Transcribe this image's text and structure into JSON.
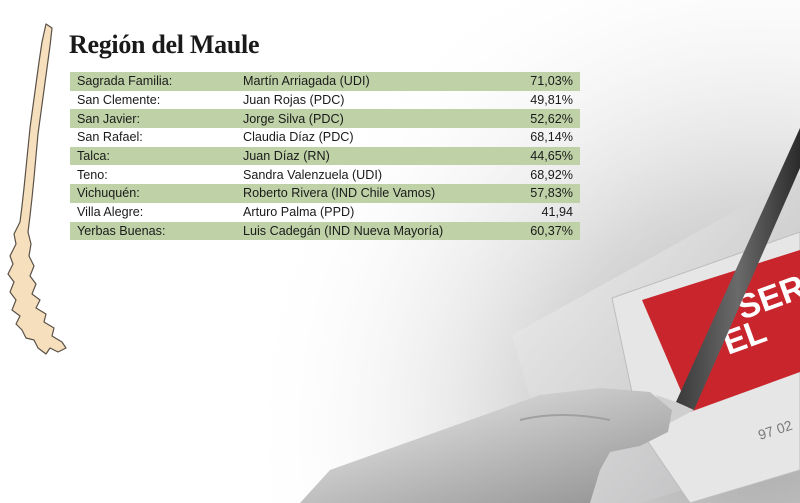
{
  "title": "Región del Maule",
  "rows": [
    {
      "commune": "Sagrada Familia:",
      "candidate": "Martín Arriagada (UDI)",
      "percent": "71,03%"
    },
    {
      "commune": "San Clemente:",
      "candidate": "Juan Rojas (PDC)",
      "percent": "49,81%"
    },
    {
      "commune": "San Javier:",
      "candidate": "Jorge Silva (PDC)",
      "percent": "52,62%"
    },
    {
      "commune": "San Rafael:",
      "candidate": "Claudia Díaz (PDC)",
      "percent": "68,14%"
    },
    {
      "commune": "Talca:",
      "candidate": "Juan Díaz (RN)",
      "percent": "44,65%"
    },
    {
      "commune": "Teno:",
      "candidate": "Sandra Valenzuela (UDI)",
      "percent": "68,92%"
    },
    {
      "commune": "Vichuquén:",
      "candidate": "Roberto Rivera (IND Chile Vamos)",
      "percent": "57,83%"
    },
    {
      "commune": "Villa Alegre:",
      "candidate": "Arturo Palma (PPD)",
      "percent": "41,94"
    },
    {
      "commune": "Yerbas Buenas:",
      "candidate": "Luis Cadegán (IND Nueva Mayoría)",
      "percent": "60,37%"
    }
  ],
  "photo": {
    "envelope_text": "SER EL",
    "note": "97 02"
  },
  "colors": {
    "row_stripe": "#bfd2a7",
    "map_fill": "#f6dfbd",
    "map_stroke": "#5a5148",
    "envelope_red": "#c8262c"
  }
}
